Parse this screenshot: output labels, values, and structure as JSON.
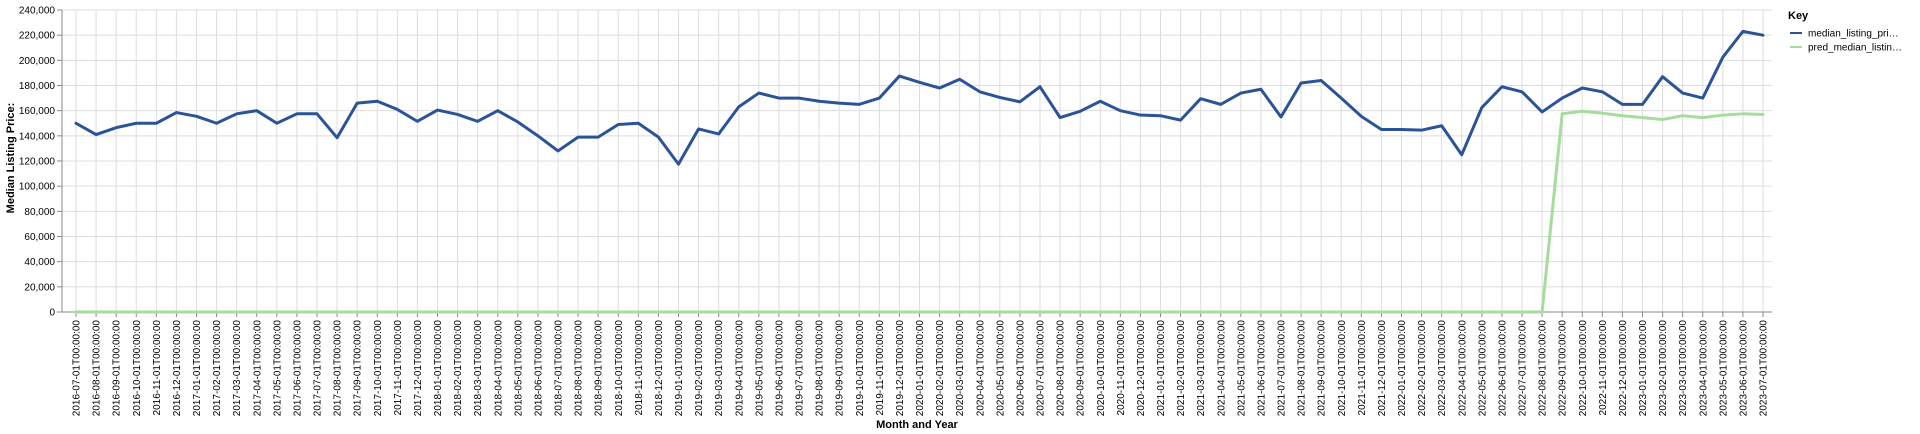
{
  "chart_data": {
    "type": "line",
    "title": "",
    "xlabel": "Month and Year",
    "ylabel": "Median Listing Price:",
    "ylim": [
      0,
      240000
    ],
    "y_ticks": [
      "0",
      "20,000",
      "40,000",
      "60,000",
      "80,000",
      "100,000",
      "120,000",
      "140,000",
      "160,000",
      "180,000",
      "200,000",
      "220,000",
      "240,000"
    ],
    "grid": true,
    "legend": {
      "title": "Key",
      "placement": "right",
      "entries": [
        "median_listing_pri…",
        "pred_median_listin…"
      ]
    },
    "x": [
      "2016-07-01T00:00:00",
      "2016-08-01T00:00:00",
      "2016-09-01T00:00:00",
      "2016-10-01T00:00:00",
      "2016-11-01T00:00:00",
      "2016-12-01T00:00:00",
      "2017-01-01T00:00:00",
      "2017-02-01T00:00:00",
      "2017-03-01T00:00:00",
      "2017-04-01T00:00:00",
      "2017-05-01T00:00:00",
      "2017-06-01T00:00:00",
      "2017-07-01T00:00:00",
      "2017-08-01T00:00:00",
      "2017-09-01T00:00:00",
      "2017-10-01T00:00:00",
      "2017-11-01T00:00:00",
      "2017-12-01T00:00:00",
      "2018-01-01T00:00:00",
      "2018-02-01T00:00:00",
      "2018-03-01T00:00:00",
      "2018-04-01T00:00:00",
      "2018-05-01T00:00:00",
      "2018-06-01T00:00:00",
      "2018-07-01T00:00:00",
      "2018-08-01T00:00:00",
      "2018-09-01T00:00:00",
      "2018-10-01T00:00:00",
      "2018-11-01T00:00:00",
      "2018-12-01T00:00:00",
      "2019-01-01T00:00:00",
      "2019-02-01T00:00:00",
      "2019-03-01T00:00:00",
      "2019-04-01T00:00:00",
      "2019-05-01T00:00:00",
      "2019-06-01T00:00:00",
      "2019-07-01T00:00:00",
      "2019-08-01T00:00:00",
      "2019-09-01T00:00:00",
      "2019-10-01T00:00:00",
      "2019-11-01T00:00:00",
      "2019-12-01T00:00:00",
      "2020-01-01T00:00:00",
      "2020-02-01T00:00:00",
      "2020-03-01T00:00:00",
      "2020-04-01T00:00:00",
      "2020-05-01T00:00:00",
      "2020-06-01T00:00:00",
      "2020-07-01T00:00:00",
      "2020-08-01T00:00:00",
      "2020-09-01T00:00:00",
      "2020-10-01T00:00:00",
      "2020-11-01T00:00:00",
      "2020-12-01T00:00:00",
      "2021-01-01T00:00:00",
      "2021-02-01T00:00:00",
      "2021-03-01T00:00:00",
      "2021-04-01T00:00:00",
      "2021-05-01T00:00:00",
      "2021-06-01T00:00:00",
      "2021-07-01T00:00:00",
      "2021-08-01T00:00:00",
      "2021-09-01T00:00:00",
      "2021-10-01T00:00:00",
      "2021-11-01T00:00:00",
      "2021-12-01T00:00:00",
      "2022-01-01T00:00:00",
      "2022-02-01T00:00:00",
      "2022-03-01T00:00:00",
      "2022-04-01T00:00:00",
      "2022-05-01T00:00:00",
      "2022-06-01T00:00:00",
      "2022-07-01T00:00:00",
      "2022-08-01T00:00:00",
      "2022-09-01T00:00:00",
      "2022-10-01T00:00:00",
      "2022-11-01T00:00:00",
      "2022-12-01T00:00:00",
      "2023-01-01T00:00:00",
      "2023-02-01T00:00:00",
      "2023-03-01T00:00:00",
      "2023-04-01T00:00:00",
      "2023-05-01T00:00:00",
      "2023-06-01T00:00:00",
      "2023-07-01T00:00:00"
    ],
    "series": [
      {
        "name": "median_listing_pri…",
        "color": "#2b5397",
        "values": [
          150000,
          141000,
          146500,
          150000,
          150000,
          158500,
          155500,
          150000,
          157500,
          160000,
          150000,
          157500,
          157500,
          138500,
          166000,
          167500,
          161000,
          151500,
          160500,
          157000,
          151500,
          160000,
          151000,
          140000,
          128000,
          139000,
          139000,
          149000,
          150000,
          139000,
          117500,
          145500,
          141500,
          163000,
          174000,
          170000,
          170000,
          167500,
          166000,
          165000,
          170000,
          187500,
          182500,
          178000,
          185000,
          175000,
          170500,
          167000,
          179000,
          154500,
          159500,
          167500,
          160000,
          156500,
          156000,
          152500,
          169500,
          165000,
          174000,
          177000,
          155000,
          182000,
          184000,
          170000,
          155500,
          145000,
          145000,
          144500,
          148000,
          125000,
          162500,
          179000,
          175000,
          159000,
          170000,
          178000,
          175000,
          165000,
          165000,
          187000,
          174000,
          170000,
          202500,
          223000,
          220000
        ]
      },
      {
        "name": "pred_median_listin…",
        "color": "#a6dc9e",
        "values": [
          0,
          0,
          0,
          0,
          0,
          0,
          0,
          0,
          0,
          0,
          0,
          0,
          0,
          0,
          0,
          0,
          0,
          0,
          0,
          0,
          0,
          0,
          0,
          0,
          0,
          0,
          0,
          0,
          0,
          0,
          0,
          0,
          0,
          0,
          0,
          0,
          0,
          0,
          0,
          0,
          0,
          0,
          0,
          0,
          0,
          0,
          0,
          0,
          0,
          0,
          0,
          0,
          0,
          0,
          0,
          0,
          0,
          0,
          0,
          0,
          0,
          0,
          0,
          0,
          0,
          0,
          0,
          0,
          0,
          0,
          0,
          0,
          0,
          0,
          157500,
          159500,
          158000,
          156000,
          154500,
          153000,
          156000,
          154500,
          156500,
          157500,
          157000
        ]
      }
    ]
  }
}
